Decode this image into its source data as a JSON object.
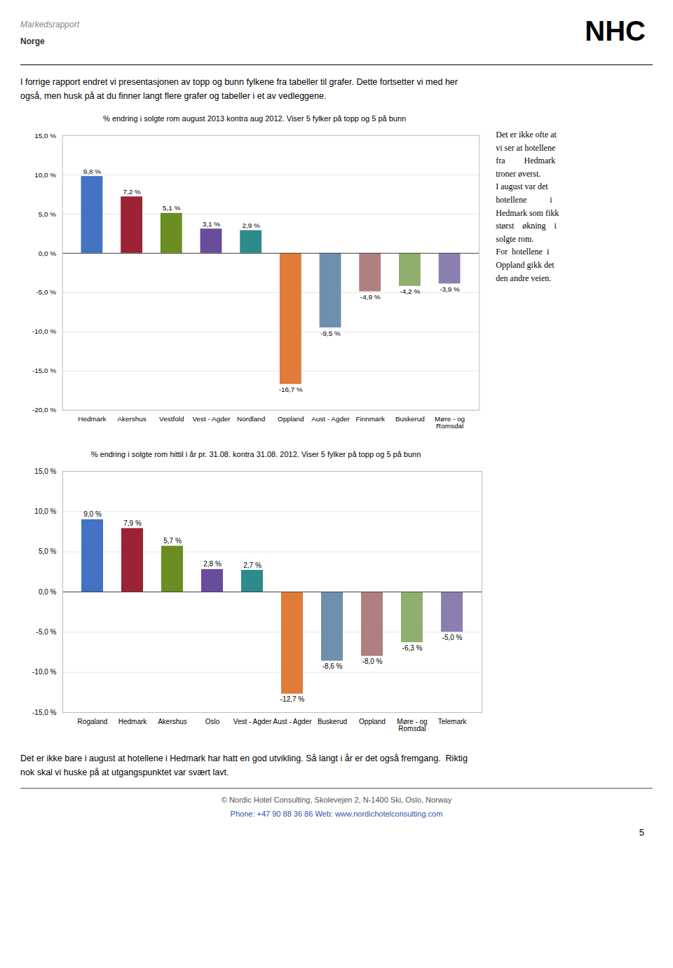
{
  "header": {
    "title1": "Markedsrapport",
    "title2": "Norge",
    "logo": "NHC"
  },
  "intro": [
    "I forrige rapport endret vi presentasjonen av topp og bunn fylkene fra tabeller til grafer. Dette fortsetter vi med her",
    "også, men husk på at du finner langt flere grafer og tabeller i et av vedleggene."
  ],
  "sidebar": [
    "Det er ikke ofte at",
    "vi ser at hotellene",
    "fra         Hedmark",
    "troner øverst.",
    "I august var det",
    "hotellene           i",
    "Hedmark som fikk",
    "størst    økning    i",
    "solgte rom.",
    "For  hotellene  i",
    "Oppland gikk det",
    "den andre veien."
  ],
  "footer": [
    "Det er ikke bare i august at hotellene i Hedmark har hatt en god utvikling. Så langt i år er det også fremgang.  Riktig",
    "nok skal vi huske på at utgangspunktet var svært lavt."
  ],
  "credits": [
    "© Nordic Hotel Consulting, Skolevejen 2, N-1400 Ski, Oslo, Norway",
    "Phone: +47 90 88 36 86 Web: www.nordichotelconsulting.com"
  ],
  "page_number": "5",
  "chart_data": [
    {
      "type": "bar",
      "title": "% endring i solgte rom august 2013 kontra aug 2012. Viser 5 fylker på topp og 5 på bunn",
      "categories": [
        "Hedmark",
        "Akershus",
        "Vestfold",
        "Vest - Agder",
        "Nordland",
        "Oppland",
        "Aust - Agder",
        "Finnmark",
        "Buskerud",
        "Møre - og\nRomsdal"
      ],
      "values": [
        9.8,
        7.2,
        5.1,
        3.1,
        2.9,
        -16.7,
        -9.5,
        -4.9,
        -4.2,
        -3.9
      ],
      "value_labels": [
        "9,8 %",
        "7,2 %",
        "5,1 %",
        "3,1 %",
        "2,9 %",
        "-16,7 %",
        "-9,5 %",
        "-4,9 %",
        "-4,2 %",
        "-3,9 %"
      ],
      "colors": [
        "#4472C4",
        "#9B2335",
        "#6B8E23",
        "#6A4C9C",
        "#2D8B8B",
        "#E07B39",
        "#6F8FAF",
        "#B08080",
        "#8FAF6F",
        "#8B7FAF"
      ],
      "ylim": [
        -20.0,
        15.0
      ],
      "yticks": [
        {
          "value": -20.0,
          "label": "-20,0 %"
        },
        {
          "value": -15.0,
          "label": "-15,0 %"
        },
        {
          "value": -10.0,
          "label": "-10,0 %"
        },
        {
          "value": -5.0,
          "label": "-5,0 %"
        },
        {
          "value": 0.0,
          "label": "0,0 %"
        },
        {
          "value": 5.0,
          "label": "5,0 %"
        },
        {
          "value": 10.0,
          "label": "10,0 %"
        },
        {
          "value": 15.0,
          "label": "15,0 %"
        }
      ],
      "grid": true,
      "data_labels": true
    },
    {
      "type": "bar",
      "title": "% endring i solgte rom  hittil i år pr. 31.08.  kontra 31.08. 2012. Viser 5 fylker på topp og 5 på bunn",
      "categories": [
        "Rogaland",
        "Hedmark",
        "Akershus",
        "Oslo",
        "Vest - Agder",
        "Aust - Agder",
        "Buskerud",
        "Oppland",
        "Møre - og\nRomsdal",
        "Telemark"
      ],
      "values": [
        9.0,
        7.9,
        5.7,
        2.8,
        2.7,
        -12.7,
        -8.6,
        -8.0,
        -6.3,
        -5.0
      ],
      "value_labels": [
        "9,0 %",
        "7,9 %",
        "5,7 %",
        "2,8 %",
        "2,7 %",
        "-12,7 %",
        "-8,6 %",
        "-8,0 %",
        "-6,3 %",
        "-5,0 %"
      ],
      "colors": [
        "#4472C4",
        "#9B2335",
        "#6B8E23",
        "#6A4C9C",
        "#2D8B8B",
        "#E07B39",
        "#6F8FAF",
        "#B08080",
        "#8FAF6F",
        "#8B7FAF"
      ],
      "ylim": [
        -15.0,
        15.0
      ],
      "yticks": [
        {
          "value": -15.0,
          "label": "-15,0 %"
        },
        {
          "value": -10.0,
          "label": "-10,0 %"
        },
        {
          "value": -5.0,
          "label": "-5,0 %"
        },
        {
          "value": 0.0,
          "label": "0,0 %"
        },
        {
          "value": 5.0,
          "label": "5,0 %"
        },
        {
          "value": 10.0,
          "label": "10,0 %"
        },
        {
          "value": 15.0,
          "label": "15,0 %"
        }
      ],
      "grid": true,
      "data_labels": true
    }
  ]
}
